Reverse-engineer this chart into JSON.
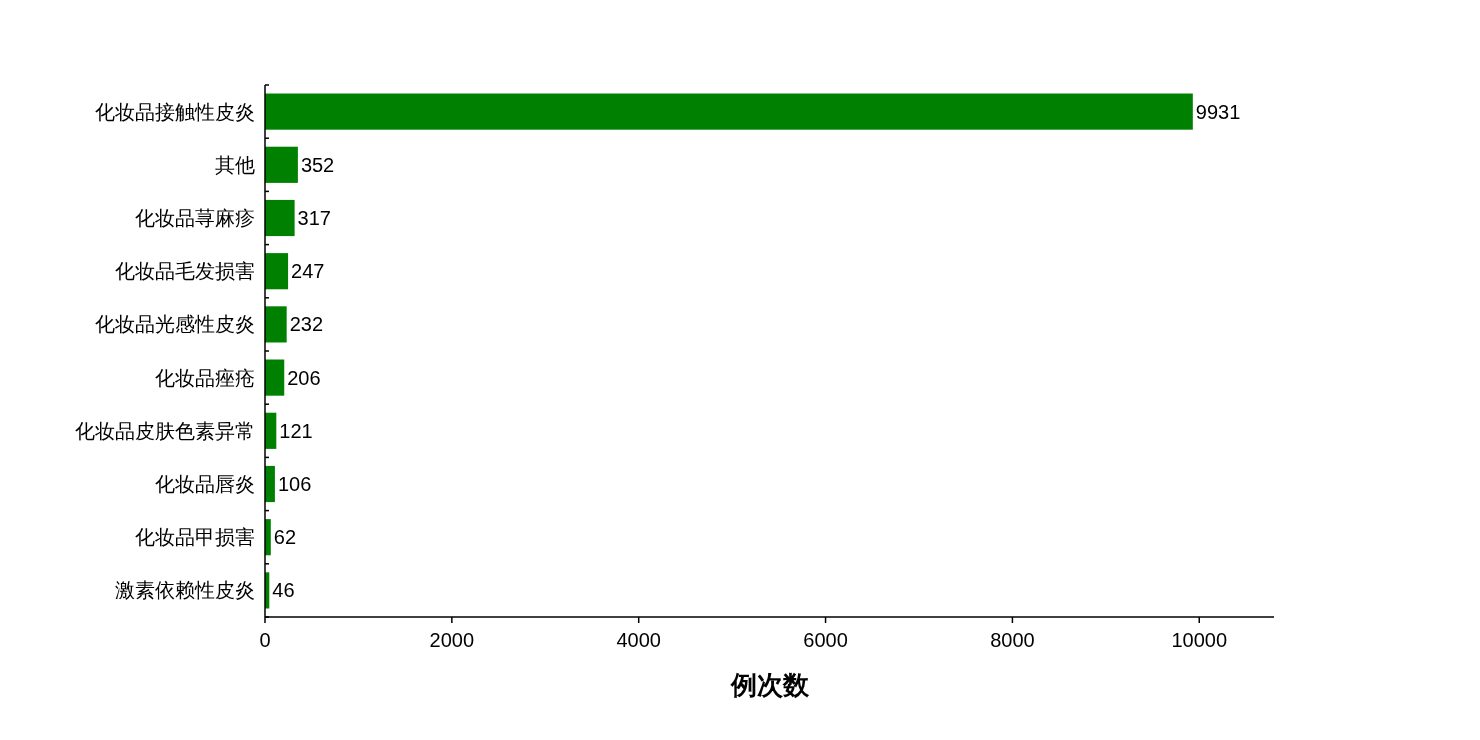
{
  "chart_data": {
    "type": "bar",
    "orientation": "horizontal",
    "xlabel": "例次数",
    "categories": [
      "化妆品接触性皮炎",
      "其他",
      "化妆品荨麻疹",
      "化妆品毛发损害",
      "化妆品光感性皮炎",
      "化妆品痤疮",
      "化妆品皮肤色素异常",
      "化妆品唇炎",
      "化妆品甲损害",
      "激素依赖性皮炎"
    ],
    "values": [
      9931,
      352,
      317,
      247,
      232,
      206,
      121,
      106,
      62,
      46
    ],
    "color": "#008000",
    "data_labels": true,
    "xlim": [
      0,
      10800
    ],
    "xticks": [
      0,
      2000,
      4000,
      6000,
      8000,
      10000
    ]
  }
}
